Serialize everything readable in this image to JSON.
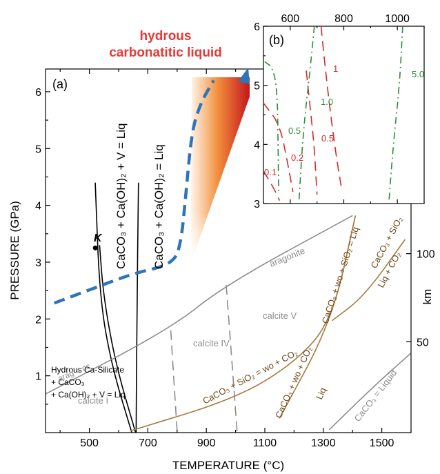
{
  "chart_data": [
    {
      "panel": "(a)",
      "type": "line",
      "xlabel": "TEMPERATURE (°C)",
      "ylabel": "PRESSURE (GPa)",
      "y2label": "km",
      "xlim": [
        350,
        1600
      ],
      "ylim": [
        0,
        6.4
      ],
      "xticks": [
        500,
        700,
        900,
        1100,
        1300,
        1500
      ],
      "yticks": [
        1,
        2,
        3,
        4,
        5,
        6
      ],
      "y2ticks": [
        {
          "label": "50",
          "p": 1.6
        },
        {
          "label": "100",
          "p": 3.15
        }
      ],
      "series": [
        {
          "label": "CaCO3 + Ca(OH)2 + V = Liq",
          "color": "#000000",
          "style": "solid",
          "points": [
            [
              645,
              0.0
            ],
            [
              575,
              1.2
            ],
            [
              535,
              2.4
            ],
            [
              520,
              4.4
            ]
          ]
        },
        {
          "label": "CaCO3 + Ca(OH)2 + V = Liq (double)",
          "color": "#000000",
          "style": "solid",
          "points": [
            [
              658,
              0.0
            ],
            [
              590,
              1.2
            ],
            [
              548,
              2.4
            ],
            [
              535,
              3.3
            ]
          ]
        },
        {
          "label": "Hydrous Ca-Silicate + CaCO3 + Ca(OH)2 + V = Liq",
          "color": "#000000",
          "style": "solid",
          "points": [
            [
              660,
              0.0
            ],
            [
              662,
              2.0
            ],
            [
              668,
              4.4
            ]
          ]
        },
        {
          "label": "aragonite = calcite",
          "color": "#8c8c8c",
          "style": "solid",
          "points": [
            [
              350,
              0.68
            ],
            [
              775,
              1.82
            ],
            [
              965,
              2.6
            ],
            [
              1400,
              3.82
            ]
          ]
        },
        {
          "label": "calcite I / IV",
          "color": "#8c8c8c",
          "style": "dashed",
          "points": [
            [
              800,
              0.03
            ],
            [
              778,
              1.82
            ]
          ]
        },
        {
          "label": "calcite IV / V",
          "color": "#8c8c8c",
          "style": "dashed",
          "points": [
            [
              1005,
              0.03
            ],
            [
              968,
              2.6
            ]
          ]
        },
        {
          "label": "CaCO3 = Liquid",
          "color": "#8c8c8c",
          "style": "solid",
          "points": [
            [
              1320,
              0.05
            ],
            [
              1480,
              0.85
            ],
            [
              1600,
              1.4
            ]
          ]
        },
        {
          "label": "CaCO3 + SiO2 = wo + CO2",
          "color": "#a57a3c",
          "style": "solid",
          "points": [
            [
              640,
              0.03
            ],
            [
              1000,
              0.6
            ],
            [
              1200,
              1.22
            ],
            [
              1330,
              1.97
            ],
            [
              1410,
              3.82
            ]
          ]
        },
        {
          "label": "CaCO3 + wo + SiO2 = Liq",
          "color": "#a57a3c",
          "style": "solid",
          "points": [
            [
              1150,
              0.25
            ],
            [
              1330,
              1.97
            ],
            [
              1410,
              3.82
            ]
          ]
        },
        {
          "label": "CaCO3 + SiO2 / Liq + CO2",
          "color": "#a57a3c",
          "style": "solid",
          "points": [
            [
              1330,
              1.97
            ],
            [
              1440,
              2.4
            ],
            [
              1580,
              3.4
            ]
          ]
        },
        {
          "label": "subduction geotherm",
          "color": "#2f74b8",
          "style": "dashed",
          "points": [
            [
              380,
              2.28
            ],
            [
              520,
              2.55
            ],
            [
              650,
              2.8
            ],
            [
              790,
              2.97
            ],
            [
              815,
              3.4
            ],
            [
              830,
              4.2
            ],
            [
              850,
              5.3
            ],
            [
              880,
              5.8
            ],
            [
              925,
              6.2
            ]
          ]
        }
      ],
      "field_labels": [
        "calcite I",
        "calcite IV",
        "calcite V",
        "aragonite",
        "arag = cc",
        "CaCO3 = Liquid",
        "Liq"
      ],
      "point_label": "K",
      "region_label": "hydrous carbonatitic liquid"
    },
    {
      "panel": "(b)",
      "type": "line",
      "xlim": [
        500,
        1100
      ],
      "ylim": [
        3,
        6
      ],
      "xticks": [
        600,
        800,
        1000
      ],
      "yticks": [
        3,
        4,
        5,
        6
      ],
      "series": [
        {
          "label": "0.1",
          "color": "#d42a2a",
          "style": "dashed",
          "points": [
            [
              500,
              3.55
            ],
            [
              540,
              3.25
            ],
            [
              560,
              3.05
            ]
          ]
        },
        {
          "label": "0.2",
          "color": "#d42a2a",
          "style": "dashed",
          "points": [
            [
              500,
              4.7
            ],
            [
              560,
              4.35
            ],
            [
              590,
              3.7
            ],
            [
              610,
              3.2
            ]
          ]
        },
        {
          "label": "0.5",
          "color": "#d42a2a",
          "style": "dashed",
          "points": [
            [
              660,
              5.25
            ],
            [
              675,
              4.6
            ],
            [
              690,
              3.95
            ],
            [
              700,
              3.15
            ]
          ]
        },
        {
          "label": "1",
          "color": "#d42a2a",
          "style": "dashed",
          "points": [
            [
              715,
              6.0
            ],
            [
              740,
              4.9
            ],
            [
              770,
              3.85
            ],
            [
              790,
              3.3
            ]
          ]
        },
        {
          "label": "0.5",
          "color": "#2e8b3a",
          "style": "dashdot",
          "points": [
            [
              505,
              5.4
            ],
            [
              535,
              5.3
            ],
            [
              552,
              4.9
            ],
            [
              555,
              3.8
            ],
            [
              557,
              3.2
            ]
          ]
        },
        {
          "label": "1.0",
          "color": "#2e8b3a",
          "style": "dashdot",
          "points": [
            [
              690,
              6.0
            ],
            [
              675,
              5.3
            ],
            [
              648,
              4.2
            ],
            [
              632,
              3.0
            ]
          ]
        },
        {
          "label": "5.0",
          "color": "#2e8b3a",
          "style": "dashdot",
          "points": [
            [
              1020,
              6.0
            ],
            [
              1008,
              5.0
            ],
            [
              985,
              4.0
            ],
            [
              968,
              3.0
            ]
          ]
        }
      ]
    }
  ],
  "labels": {
    "panel_a": "(a)",
    "panel_b": "(b)",
    "liquid_line1": "hydrous",
    "liquid_line2": "carbonatitic liquid",
    "x_axis_title": "TEMPERATURE (°C)",
    "y_axis_title": "PRESSURE (GPa)",
    "km_axis_title": "km",
    "km_50": "50",
    "km_100": "100",
    "point_k": "K",
    "rot_line1": "CaCO₃ + Ca(OH)₂ + V = Liq",
    "rot_line2": "CaCO₃ + Ca(OH)₂ = Liq",
    "silicate_1": "Hydrous Ca-Silicate",
    "silicate_2": "+ CaCO₃",
    "silicate_3": "+ Ca(OH)₂ + V = Liq",
    "calcite_i": "calcite I",
    "calcite_iv": "calcite IV",
    "calcite_v": "calcite V",
    "aragonite": "aragonite",
    "arag_cc": "arag = cc",
    "caco3_liquid": "CaCO₃ = Liquid",
    "react_wo": "CaCO₃ + SiO₂ = wo + CO₂",
    "react_wo_liq": "CaCO₃ + wo + SiO₂ = Liq",
    "react_co2_1": "CaCO₃ + SiO₂",
    "react_co2_2": "Liq + CO₂",
    "react_left_1": "CaCO₃ + wo + CO₂",
    "react_left_2": "Liq",
    "b_0_1": "0.1",
    "b_0_2": "0.2",
    "b_0_5r": "0.5",
    "b_1r": "1",
    "b_0_5g": "0.5",
    "b_1_0g": "1.0",
    "b_5_0g": "5.0"
  },
  "colors": {
    "black": "#000000",
    "gray": "#8c8c8c",
    "brown": "#a57a3c",
    "blue": "#2f74b8",
    "red": "#d42a2a",
    "green": "#2e8b3a",
    "liquid_title": "#e53935"
  }
}
